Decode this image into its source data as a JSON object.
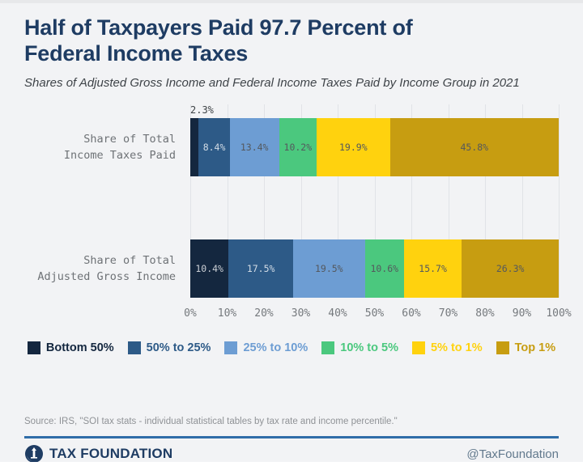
{
  "header": {
    "title": "Half of Taxpayers Paid 97.7 Percent of Federal Income Taxes",
    "subtitle": "Shares of Adjusted Gross Income and Federal Income Taxes Paid by Income Group in 2021"
  },
  "chart_data": {
    "type": "bar",
    "orientation": "horizontal",
    "stacked": true,
    "xlim": [
      0,
      100
    ],
    "x_ticks": [
      "0%",
      "10%",
      "20%",
      "30%",
      "40%",
      "50%",
      "60%",
      "70%",
      "80%",
      "90%",
      "100%"
    ],
    "grid": true,
    "legend_position": "bottom-center",
    "series": [
      {
        "name": "Bottom 50%",
        "color": "#14273f",
        "label_color": "rgba(255,255,255,0.78)"
      },
      {
        "name": "50% to 25%",
        "color": "#2d5a87",
        "label_color": "rgba(255,255,255,0.78)"
      },
      {
        "name": "25% to 10%",
        "color": "#6d9dd3",
        "label_color": "#54585d"
      },
      {
        "name": "10% to 5%",
        "color": "#4bc87e",
        "label_color": "#54585d"
      },
      {
        "name": "5% to 1%",
        "color": "#ffd20e",
        "label_color": "#54585d"
      },
      {
        "name": "Top 1%",
        "color": "#c79d11",
        "label_color": "#54585d"
      }
    ],
    "rows": [
      {
        "label_lines": [
          "Share of Total",
          "Income Taxes Paid"
        ],
        "values": [
          2.3,
          8.4,
          13.4,
          10.2,
          19.9,
          45.8
        ],
        "value_labels": [
          "2.3%",
          "8.4%",
          "13.4%",
          "10.2%",
          "19.9%",
          "45.8%"
        ],
        "outside_label_indices": [
          0
        ]
      },
      {
        "label_lines": [
          "Share of Total",
          "Adjusted Gross Income"
        ],
        "values": [
          10.4,
          17.5,
          19.5,
          10.6,
          15.7,
          26.3
        ],
        "value_labels": [
          "10.4%",
          "17.5%",
          "19.5%",
          "10.6%",
          "15.7%",
          "26.3%"
        ],
        "outside_label_indices": []
      }
    ]
  },
  "footer": {
    "source": "Source: IRS, \"SOI tax stats - individual statistical tables by tax rate and income percentile.\"",
    "brand": "TAX FOUNDATION",
    "handle": "@TaxFoundation"
  },
  "colors": {
    "background": "#f2f3f5",
    "title": "#1e3c63",
    "footer_rule": "#2f6da8",
    "gridline": "#e1e3e7"
  }
}
